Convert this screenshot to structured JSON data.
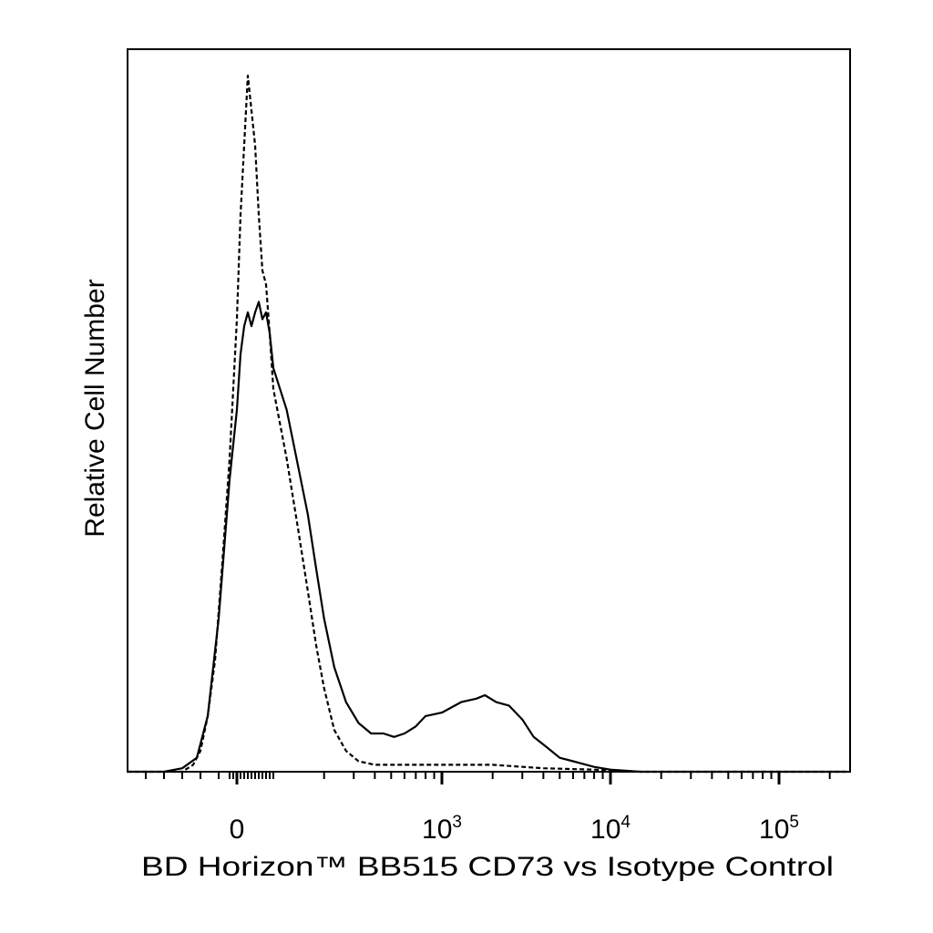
{
  "chart_data": {
    "type": "line",
    "title": "",
    "xlabel": "BD Horizon™ BB515 CD73 vs Isotype Control",
    "ylabel": "Relative Cell Number",
    "xscale": "biexponential (linear near 0, log above)",
    "xlim": [
      -300,
      250000
    ],
    "ylim": [
      0,
      100
    ],
    "grid": false,
    "legend": "none",
    "x_tick_labels": [
      {
        "value": 0,
        "base": "0",
        "exp": ""
      },
      {
        "value": 1000,
        "base": "10",
        "exp": "3"
      },
      {
        "value": 10000,
        "base": "10",
        "exp": "4"
      },
      {
        "value": 100000,
        "base": "10",
        "exp": "5"
      }
    ],
    "series": [
      {
        "style": "solid",
        "points": [
          [
            -300,
            0
          ],
          [
            -200,
            0
          ],
          [
            -150,
            0.5
          ],
          [
            -110,
            2
          ],
          [
            -80,
            8
          ],
          [
            -50,
            22
          ],
          [
            -20,
            42
          ],
          [
            0,
            52
          ],
          [
            10,
            60
          ],
          [
            20,
            64
          ],
          [
            30,
            66
          ],
          [
            40,
            64
          ],
          [
            50,
            66
          ],
          [
            60,
            67.5
          ],
          [
            70,
            65
          ],
          [
            80,
            66
          ],
          [
            90,
            63
          ],
          [
            100,
            58
          ],
          [
            120,
            52
          ],
          [
            140,
            44
          ],
          [
            160,
            37
          ],
          [
            180,
            29
          ],
          [
            200,
            22
          ],
          [
            230,
            15
          ],
          [
            270,
            10
          ],
          [
            320,
            7
          ],
          [
            380,
            5.5
          ],
          [
            450,
            5.5
          ],
          [
            520,
            5
          ],
          [
            600,
            5.5
          ],
          [
            700,
            6.5
          ],
          [
            800,
            8
          ],
          [
            1000,
            8.5
          ],
          [
            1300,
            10
          ],
          [
            1600,
            10.5
          ],
          [
            1800,
            11
          ],
          [
            2100,
            10
          ],
          [
            2500,
            9.5
          ],
          [
            3000,
            7.5
          ],
          [
            3500,
            5
          ],
          [
            4200,
            3.5
          ],
          [
            5000,
            2
          ],
          [
            6000,
            1.5
          ],
          [
            8000,
            0.7
          ],
          [
            10000,
            0.3
          ],
          [
            15000,
            0
          ],
          [
            250000,
            0
          ]
        ]
      },
      {
        "style": "dashed",
        "points": [
          [
            -300,
            0
          ],
          [
            -150,
            0
          ],
          [
            -120,
            1
          ],
          [
            -100,
            3
          ],
          [
            -80,
            8
          ],
          [
            -60,
            16
          ],
          [
            -40,
            30
          ],
          [
            -20,
            45
          ],
          [
            -10,
            55
          ],
          [
            0,
            65
          ],
          [
            10,
            80
          ],
          [
            20,
            90
          ],
          [
            30,
            100
          ],
          [
            40,
            95
          ],
          [
            50,
            90
          ],
          [
            60,
            80
          ],
          [
            70,
            72
          ],
          [
            80,
            70
          ],
          [
            90,
            63
          ],
          [
            100,
            55
          ],
          [
            120,
            45
          ],
          [
            140,
            35
          ],
          [
            160,
            26
          ],
          [
            180,
            18
          ],
          [
            200,
            12
          ],
          [
            230,
            6
          ],
          [
            270,
            3
          ],
          [
            320,
            1.5
          ],
          [
            400,
            1
          ],
          [
            600,
            1
          ],
          [
            1000,
            1
          ],
          [
            2000,
            1
          ],
          [
            4000,
            0.5
          ],
          [
            8000,
            0.3
          ],
          [
            15000,
            0
          ],
          [
            250000,
            0
          ]
        ]
      }
    ]
  }
}
